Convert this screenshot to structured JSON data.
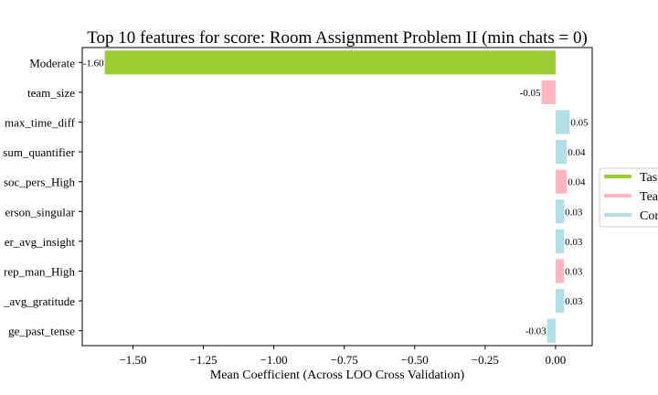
{
  "chart_data": {
    "type": "bar",
    "orientation": "horizontal",
    "title": "Top 10 features for score: Room Assignment Problem II (min chats = 0)",
    "xlabel": "Mean Coefficient (Across LOO Cross Validation)",
    "ylabel": "",
    "xlim": [
      -1.68,
      0.13
    ],
    "xticks": [
      -1.5,
      -1.25,
      -1.0,
      -0.75,
      -0.5,
      -0.25,
      0.0
    ],
    "xtick_labels": [
      "−1.50",
      "−1.25",
      "−1.00",
      "−0.75",
      "−0.50",
      "−0.25",
      "0.00"
    ],
    "grid": false,
    "legend_placement": "right, outside plot",
    "categories": [
      "Moderate",
      "team_size",
      "max_time_diff",
      "sum_quantifier",
      "soc_pers_High",
      "erson_singular",
      "er_avg_insight",
      "rep_man_High",
      "_avg_gratitude",
      "ge_past_tense"
    ],
    "values": [
      -1.6,
      -0.05,
      0.05,
      0.04,
      0.04,
      0.03,
      0.03,
      0.03,
      0.03,
      -0.03
    ],
    "value_labels": [
      "-1.60",
      "-0.05",
      "0.05",
      "0.04",
      "0.04",
      "0.03",
      "0.03",
      "0.03",
      "0.03",
      "-0.03"
    ],
    "bar_group": [
      0,
      1,
      2,
      2,
      1,
      2,
      2,
      1,
      2,
      2
    ],
    "groups": [
      {
        "name": "Tas",
        "color": "#9acd32"
      },
      {
        "name": "Tea",
        "color": "#ffb6c1"
      },
      {
        "name": "Cor",
        "color": "#b0dfe5"
      }
    ]
  }
}
